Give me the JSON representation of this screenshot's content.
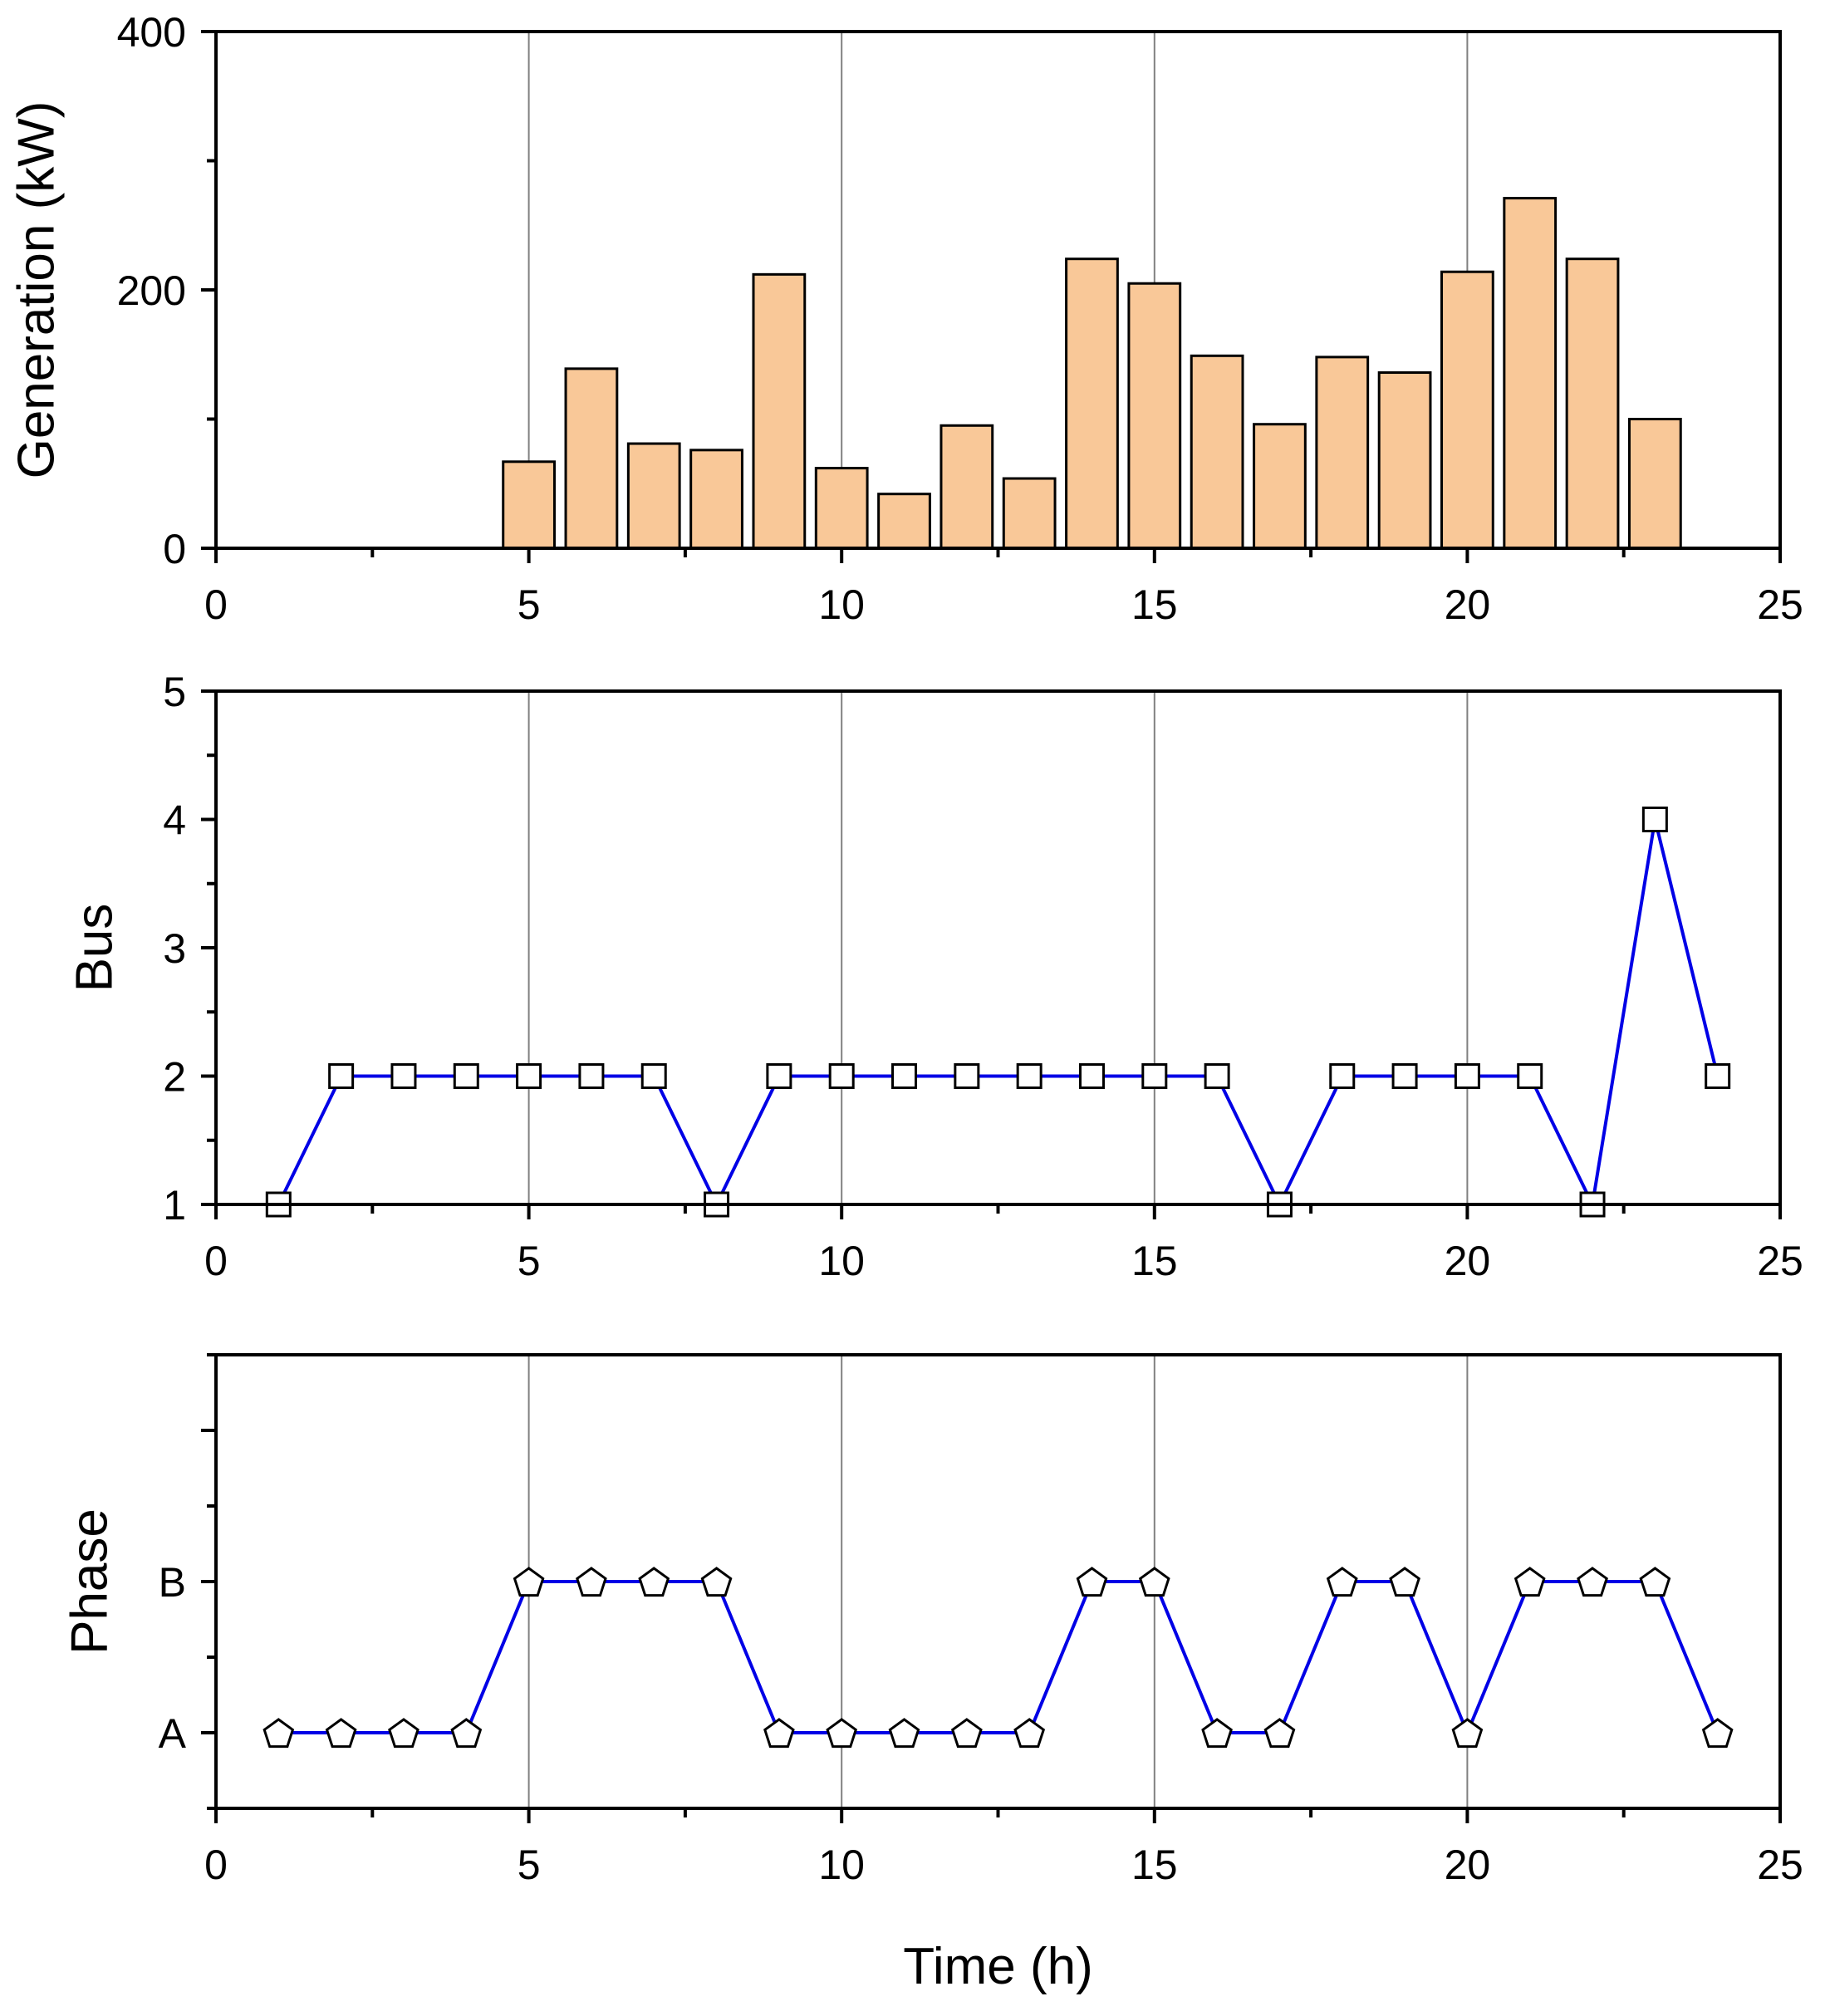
{
  "chart_data": [
    {
      "type": "bar",
      "panel": "top",
      "xlabel": "",
      "ylabel": "Generation (kW)",
      "xlim": [
        0,
        25
      ],
      "ylim": [
        0,
        400
      ],
      "xticks": [
        "0",
        "5",
        "10",
        "15",
        "20",
        "25"
      ],
      "yticks": [
        "0",
        "200",
        "400"
      ],
      "grid_x": [
        5,
        10,
        15,
        20
      ],
      "bar_color": "#F9C898",
      "x": [
        5,
        6,
        7,
        8,
        9,
        10,
        11,
        12,
        13,
        14,
        15,
        16,
        17,
        18,
        19,
        20,
        21,
        22,
        23
      ],
      "values": [
        67,
        139,
        81,
        76,
        212,
        62,
        42,
        95,
        54,
        224,
        205,
        149,
        96,
        148,
        136,
        214,
        271,
        224,
        100
      ]
    },
    {
      "type": "line",
      "panel": "middle",
      "xlabel": "",
      "ylabel": "Bus",
      "xlim": [
        0,
        25
      ],
      "ylim": [
        1,
        5
      ],
      "xticks": [
        "0",
        "5",
        "10",
        "15",
        "20",
        "25"
      ],
      "yticks": [
        "1",
        "2",
        "3",
        "4",
        "5"
      ],
      "grid_x": [
        5,
        10,
        15,
        20
      ],
      "line_color": "#0000E6",
      "marker": "square",
      "x": [
        1,
        2,
        3,
        4,
        5,
        6,
        7,
        8,
        9,
        10,
        11,
        12,
        13,
        14,
        15,
        16,
        17,
        18,
        19,
        20,
        21,
        22,
        23,
        24
      ],
      "values": [
        1,
        2,
        2,
        2,
        2,
        2,
        2,
        1,
        2,
        2,
        2,
        2,
        2,
        2,
        2,
        2,
        1,
        2,
        2,
        2,
        2,
        1,
        4,
        2
      ]
    },
    {
      "type": "line",
      "panel": "bottom",
      "xlabel": "Time (h)",
      "ylabel": "Phase",
      "xlim": [
        0,
        25
      ],
      "ylim": [
        0,
        3
      ],
      "xticks": [
        "0",
        "5",
        "10",
        "15",
        "20",
        "25"
      ],
      "yticks": [
        {
          "value": 0.5,
          "label": "A"
        },
        {
          "value": 1.5,
          "label": "B"
        }
      ],
      "grid_x": [
        5,
        10,
        15,
        20
      ],
      "line_color": "#0000E6",
      "marker": "pentagon",
      "x": [
        1,
        2,
        3,
        4,
        5,
        6,
        7,
        8,
        9,
        10,
        11,
        12,
        13,
        14,
        15,
        16,
        17,
        18,
        19,
        20,
        21,
        22,
        23,
        24
      ],
      "categories": [
        "A",
        "A",
        "A",
        "A",
        "B",
        "B",
        "B",
        "B",
        "A",
        "A",
        "A",
        "A",
        "A",
        "B",
        "B",
        "A",
        "A",
        "B",
        "B",
        "A",
        "B",
        "B",
        "B",
        "A"
      ]
    }
  ]
}
